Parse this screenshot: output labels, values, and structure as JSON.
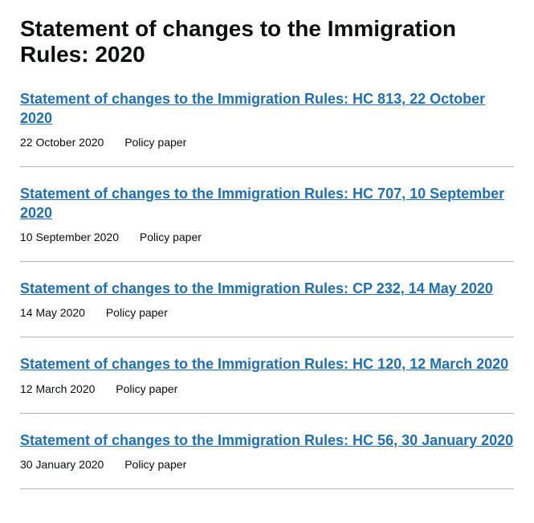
{
  "page": {
    "title": "Statement of changes to the Immigration Rules: 2020"
  },
  "documents": [
    {
      "title": "Statement of changes to the Immigration Rules: HC 813, 22 October 2020",
      "date": "22 October 2020",
      "type": "Policy paper"
    },
    {
      "title": "Statement of changes to the Immigration Rules: HC 707, 10 September 2020",
      "date": "10 September 2020",
      "type": "Policy paper"
    },
    {
      "title": "Statement of changes to the Immigration Rules: CP 232, 14 May 2020",
      "date": "14 May 2020",
      "type": "Policy paper"
    },
    {
      "title": "Statement of changes to the Immigration Rules: HC 120, 12 March 2020",
      "date": "12 March 2020",
      "type": "Policy paper"
    },
    {
      "title": "Statement of changes to the Immigration Rules: HC 56, 30 January 2020",
      "date": "30 January 2020",
      "type": "Policy paper"
    }
  ],
  "styling": {
    "link_color": "#1d70b8",
    "text_color": "#0b0c0c",
    "border_color": "#b1b4b6",
    "background_color": "#ffffff",
    "title_fontsize": 28,
    "link_fontsize": 18,
    "meta_fontsize": 14
  }
}
